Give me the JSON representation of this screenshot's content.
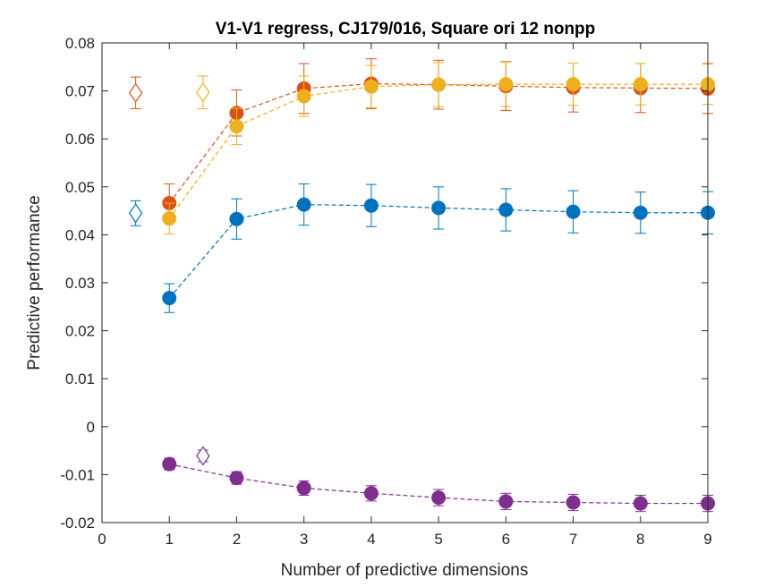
{
  "chart_data": {
    "type": "scatter",
    "title": "V1-V1 regress, CJ179/016, Square ori 12 nonpp",
    "xlabel": "Number of predictive dimensions",
    "ylabel": "Predictive performance",
    "xlim": [
      0,
      9
    ],
    "ylim": [
      -0.02,
      0.08
    ],
    "xticks": [
      0,
      1,
      2,
      3,
      4,
      5,
      6,
      7,
      8,
      9
    ],
    "xtick_labels": [
      "0",
      "1",
      "2",
      "3",
      "4",
      "5",
      "6",
      "7",
      "8",
      "9"
    ],
    "yticks": [
      -0.02,
      -0.01,
      0,
      0.01,
      0.02,
      0.03,
      0.04,
      0.05,
      0.06,
      0.07,
      0.08
    ],
    "ytick_labels": [
      "-0.02",
      "-0.01",
      "0",
      "0.01",
      "0.02",
      "0.03",
      "0.04",
      "0.05",
      "0.06",
      "0.07",
      "0.08"
    ],
    "grid": false,
    "legend": "none",
    "series": [
      {
        "color": "#0072BD",
        "x": [
          1,
          2,
          3,
          4,
          5,
          6,
          7,
          8,
          9
        ],
        "y": [
          0.0268,
          0.0433,
          0.0463,
          0.0461,
          0.0456,
          0.0452,
          0.0448,
          0.0446,
          0.0446
        ],
        "err": [
          0.003,
          0.0042,
          0.0043,
          0.0044,
          0.0044,
          0.0044,
          0.0044,
          0.0043,
          0.0044
        ],
        "reference": {
          "x": 0.5,
          "y": 0.0445,
          "err": 0.0026
        }
      },
      {
        "color": "#D95319",
        "x": [
          1,
          2,
          3,
          4,
          5,
          6,
          7,
          8,
          9
        ],
        "y": [
          0.0466,
          0.0654,
          0.0705,
          0.0715,
          0.0713,
          0.071,
          0.0707,
          0.0706,
          0.0705
        ],
        "err": [
          0.004,
          0.0048,
          0.0052,
          0.0052,
          0.0051,
          0.0051,
          0.0051,
          0.0051,
          0.0052
        ],
        "reference": {
          "x": 0.5,
          "y": 0.0696,
          "err": 0.0033
        }
      },
      {
        "color": "#EDB120",
        "x": [
          1,
          2,
          3,
          4,
          5,
          6,
          7,
          8,
          9
        ],
        "y": [
          0.0434,
          0.0626,
          0.0689,
          0.0709,
          0.0713,
          0.0714,
          0.0714,
          0.0714,
          0.0714
        ],
        "err": [
          0.0032,
          0.0038,
          0.0042,
          0.0044,
          0.0046,
          0.0046,
          0.0044,
          0.0043,
          0.0042
        ],
        "reference": {
          "x": 1.5,
          "y": 0.0697,
          "err": 0.0034
        }
      },
      {
        "color": "#7E2F8E",
        "x": [
          1,
          2,
          3,
          4,
          5,
          6,
          7,
          8,
          9
        ],
        "y": [
          -0.0078,
          -0.0107,
          -0.0128,
          -0.0139,
          -0.0148,
          -0.0156,
          -0.0158,
          -0.016,
          -0.016
        ],
        "err": [
          0.0012,
          0.0013,
          0.0015,
          0.0016,
          0.0017,
          0.0017,
          0.0017,
          0.0017,
          0.0017
        ],
        "reference": {
          "x": 1.5,
          "y": -0.0061,
          "err": 0.0012
        }
      }
    ]
  }
}
